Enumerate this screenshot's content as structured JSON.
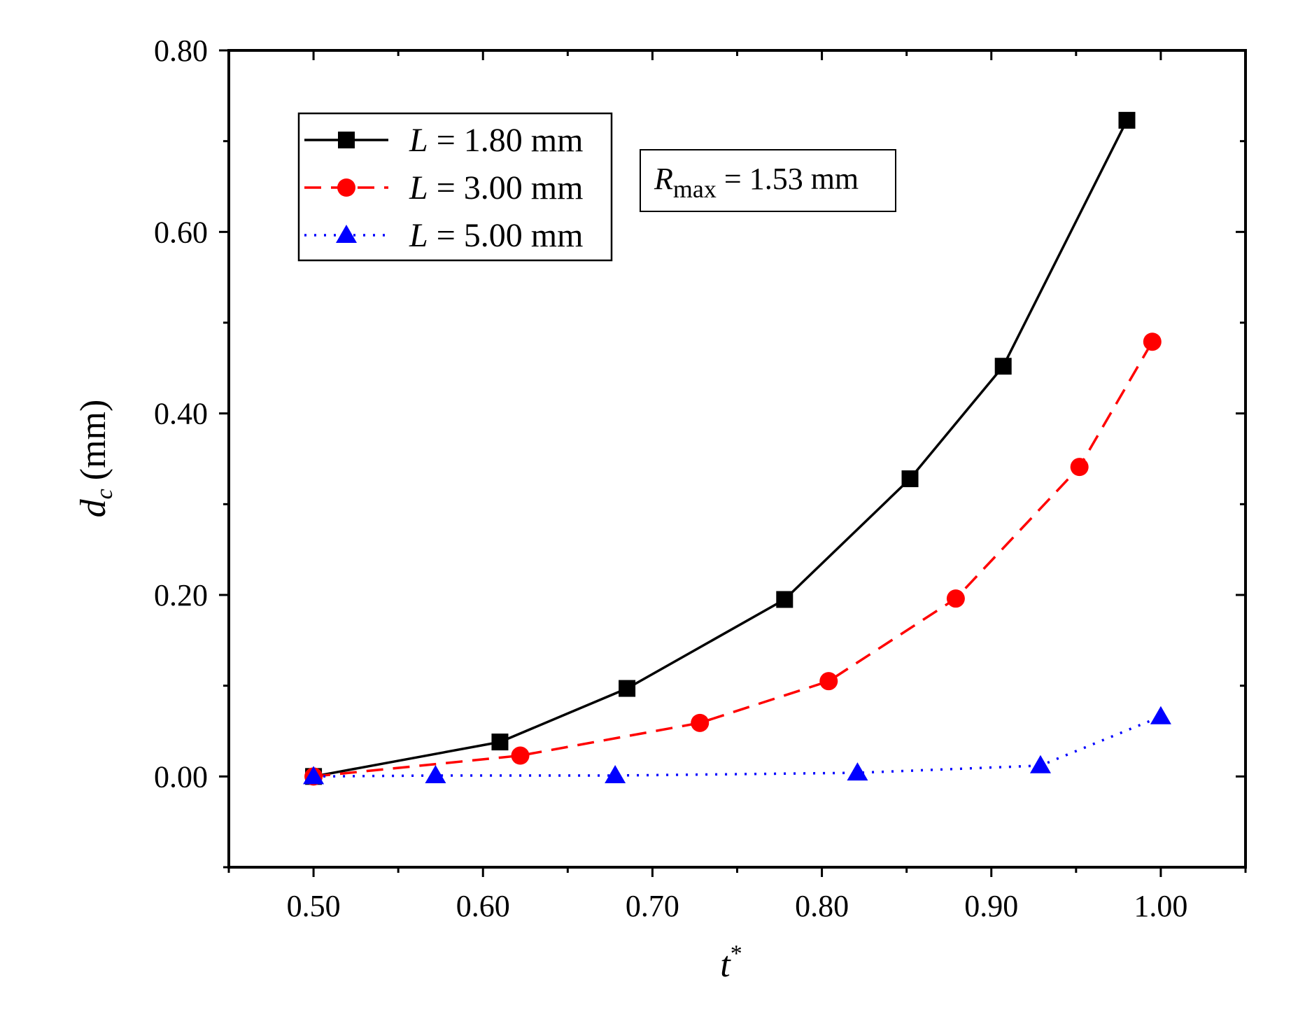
{
  "chart_data": {
    "type": "line",
    "title": "",
    "xlabel": "t",
    "xlabel_superscript": "*",
    "ylabel": "d",
    "ylabel_subscript": "c",
    "ylabel_unit": "(mm)",
    "xlim": [
      0.45,
      1.05
    ],
    "ylim": [
      -0.1,
      0.8
    ],
    "x_ticks": [
      0.5,
      0.6,
      0.7,
      0.8,
      0.9,
      1.0
    ],
    "x_tick_labels": [
      "0.50",
      "0.60",
      "0.70",
      "0.80",
      "0.90",
      "1.00"
    ],
    "y_ticks": [
      0.0,
      0.2,
      0.4,
      0.6,
      0.8
    ],
    "y_tick_labels": [
      "0.00",
      "0.20",
      "0.40",
      "0.60",
      "0.80"
    ],
    "grid": false,
    "legend_position": "top-left",
    "series": [
      {
        "name": "L = 1.80 mm",
        "legend_var": "L",
        "legend_rest": " = 1.80 mm",
        "color": "#000000",
        "line_style": "solid",
        "marker": "square",
        "x": [
          0.5,
          0.61,
          0.685,
          0.778,
          0.852,
          0.907,
          0.98
        ],
        "y": [
          0.0,
          0.038,
          0.097,
          0.195,
          0.328,
          0.452,
          0.723
        ]
      },
      {
        "name": "L = 3.00 mm",
        "legend_var": "L",
        "legend_rest": " = 3.00 mm",
        "color": "#ff0000",
        "line_style": "dashed",
        "marker": "circle",
        "x": [
          0.5,
          0.622,
          0.728,
          0.804,
          0.879,
          0.952,
          0.995
        ],
        "y": [
          0.0,
          0.023,
          0.059,
          0.105,
          0.196,
          0.341,
          0.479
        ]
      },
      {
        "name": "L = 5.00 mm",
        "legend_var": "L",
        "legend_rest": " = 5.00 mm",
        "color": "#0000ff",
        "line_style": "dotted",
        "marker": "triangle",
        "x": [
          0.5,
          0.572,
          0.678,
          0.821,
          0.929,
          1.0
        ],
        "y": [
          0.0,
          0.001,
          0.001,
          0.004,
          0.012,
          0.066
        ]
      }
    ],
    "annotations": [
      {
        "var": "R",
        "subscript": "max",
        "rest": " = 1.53 mm"
      }
    ]
  }
}
